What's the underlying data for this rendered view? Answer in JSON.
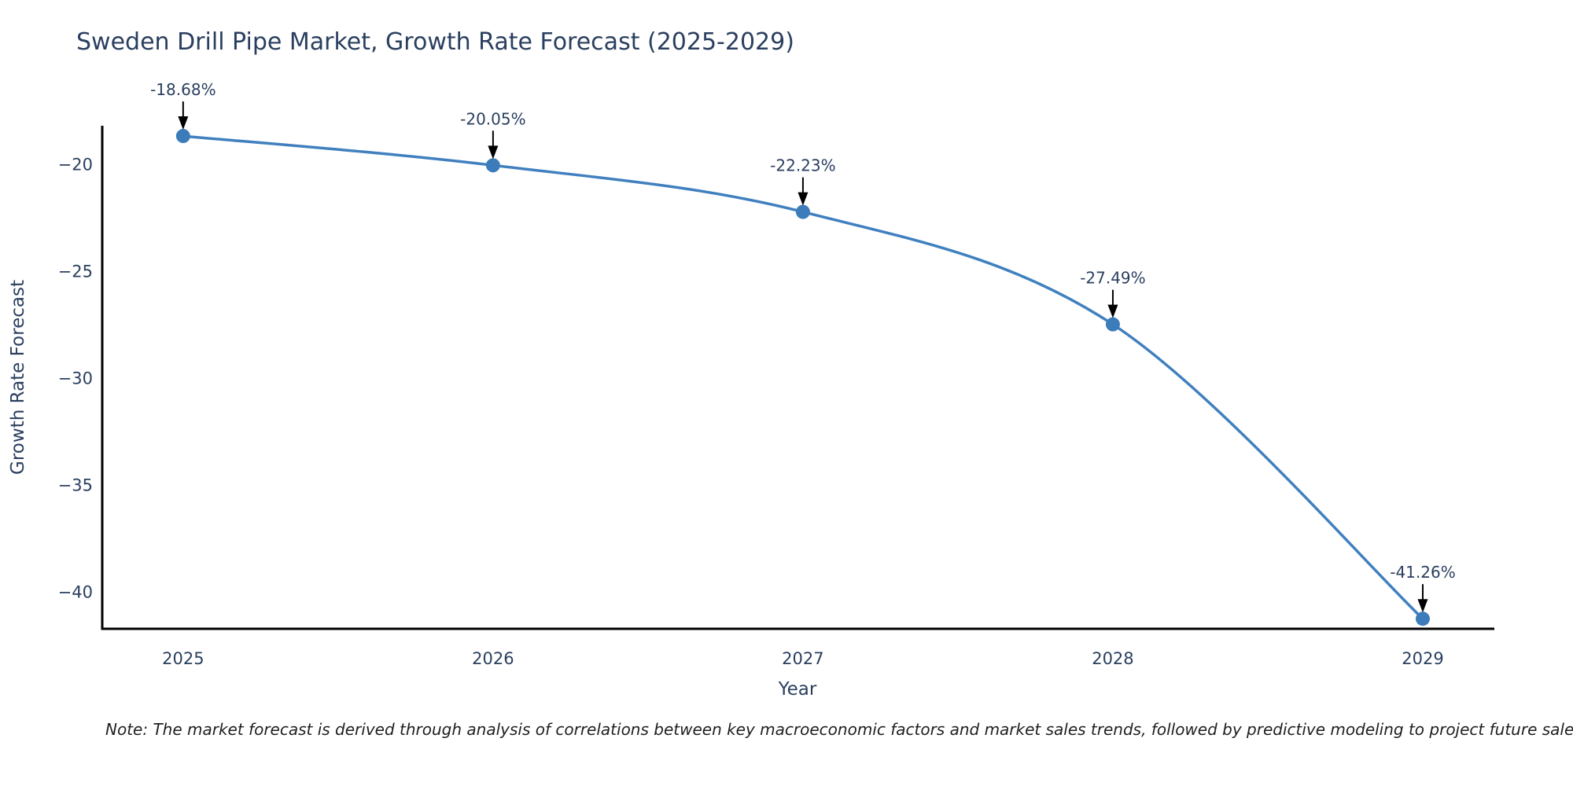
{
  "page": {
    "note": "Note: The market forecast is derived through analysis of correlations between key macroeconomic factors and market sales trends, followed by predictive modeling to project future sales"
  },
  "chart_data": {
    "type": "line",
    "title": "Sweden Drill Pipe Market, Growth Rate Forecast (2025-2029)",
    "xlabel": "Year",
    "ylabel": "Growth Rate Forecast",
    "x": [
      2025,
      2026,
      2027,
      2028,
      2029
    ],
    "y": [
      -18.68,
      -20.05,
      -22.23,
      -27.49,
      -41.26
    ],
    "point_labels": [
      "-18.68%",
      "-20.05%",
      "-22.23%",
      "-27.49%",
      "-41.26%"
    ],
    "x_tick_labels": [
      "2025",
      "2026",
      "2027",
      "2028",
      "2029"
    ],
    "x_tick_values": [
      2025,
      2026,
      2027,
      2028,
      2029
    ],
    "y_tick_labels": [
      "−20",
      "−25",
      "−30",
      "−35",
      "−40"
    ],
    "y_tick_values": [
      -20,
      -25,
      -30,
      -35,
      -40
    ],
    "xlim": [
      2024.739,
      2029.231
    ],
    "ylim": [
      -41.73,
      -18.2
    ],
    "grid": false,
    "legend_position": "none",
    "line_shape": "spline",
    "colors": {
      "line": "#4080bf",
      "marker": "#3c7cba",
      "axis": "#000000",
      "text": "#2a3f5f",
      "annotation_text": "#2a3f5f",
      "annotation_arrow": "#000000",
      "note_text": "#1f1f1f",
      "background": "#ffffff"
    }
  }
}
